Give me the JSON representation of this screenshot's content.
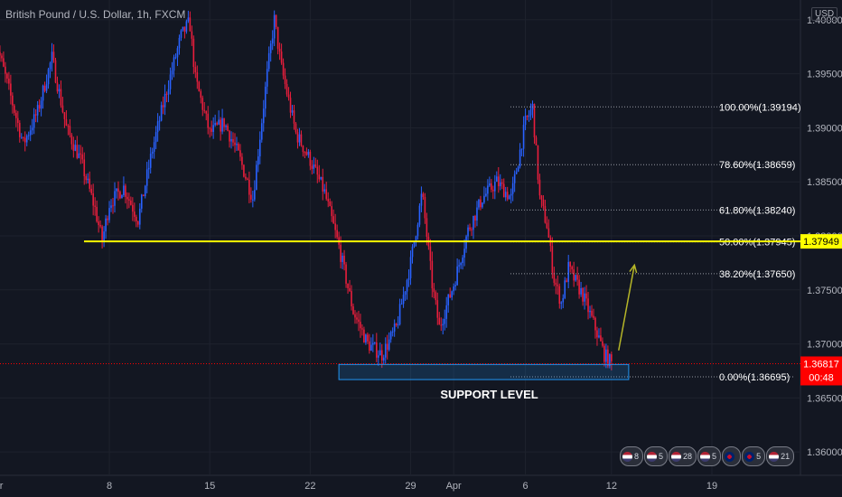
{
  "header": {
    "title": "British Pound / U.S. Dollar, 1h, FXCM",
    "currency": "USD"
  },
  "colors": {
    "background": "#131722",
    "grid": "#1e222d",
    "up_candle": "#2962ff",
    "down_candle": "#e91e3c",
    "key_level": "#ffff00",
    "support_box": "#2196f3",
    "price_tag": "#ff0000",
    "arrow": "#b5b528"
  },
  "chart_data": {
    "type": "candlestick",
    "symbol": "GBPUSD",
    "timeframe": "1h",
    "ylim": [
      1.3565,
      1.4025
    ],
    "y_ticks": [
      "1.40000",
      "1.39500",
      "1.39000",
      "1.38500",
      "1.38000",
      "1.37500",
      "1.37000",
      "1.36500",
      "1.36000"
    ],
    "x_ticks": [
      "Mar",
      "8",
      "15",
      "22",
      "29",
      "Apr",
      "6",
      "12",
      "19"
    ],
    "x_tick_days": [
      0,
      8,
      15,
      22,
      29,
      32,
      37,
      43,
      50
    ],
    "series_close_approx": [
      [
        0,
        1.3985
      ],
      [
        1,
        1.3935
      ],
      [
        2,
        1.3885
      ],
      [
        3,
        1.3915
      ],
      [
        4,
        1.3965
      ],
      [
        5,
        1.39
      ],
      [
        6,
        1.387
      ],
      [
        7,
        1.3825
      ],
      [
        7.5,
        1.3795
      ],
      [
        8,
        1.383
      ],
      [
        9,
        1.3845
      ],
      [
        10,
        1.3815
      ],
      [
        11,
        1.388
      ],
      [
        12,
        1.3935
      ],
      [
        13,
        1.3985
      ],
      [
        13.6,
        1.3998
      ],
      [
        14,
        1.3945
      ],
      [
        15,
        1.3895
      ],
      [
        16,
        1.3905
      ],
      [
        17,
        1.3875
      ],
      [
        18,
        1.3835
      ],
      [
        19,
        1.395
      ],
      [
        19.5,
        1.4
      ],
      [
        20,
        1.3955
      ],
      [
        21,
        1.3895
      ],
      [
        22,
        1.387
      ],
      [
        23,
        1.384
      ],
      [
        24,
        1.379
      ],
      [
        25,
        1.373
      ],
      [
        26,
        1.37
      ],
      [
        27,
        1.369
      ],
      [
        28,
        1.3715
      ],
      [
        29,
        1.3775
      ],
      [
        29.8,
        1.384
      ],
      [
        30.5,
        1.3755
      ],
      [
        31,
        1.3715
      ],
      [
        32,
        1.3755
      ],
      [
        33,
        1.3805
      ],
      [
        34,
        1.3835
      ],
      [
        35,
        1.385
      ],
      [
        36,
        1.3835
      ],
      [
        37,
        1.3905
      ],
      [
        37.5,
        1.3919
      ],
      [
        38,
        1.3835
      ],
      [
        38.5,
        1.381
      ],
      [
        39,
        1.376
      ],
      [
        39.5,
        1.3738
      ],
      [
        40,
        1.377
      ],
      [
        41,
        1.3745
      ],
      [
        42,
        1.371
      ],
      [
        42.5,
        1.369
      ],
      [
        43,
        1.3682
      ]
    ],
    "fibonacci": [
      {
        "label": "100.00%(1.39194)",
        "price": 1.39194
      },
      {
        "label": "78.60%(1.38659)",
        "price": 1.38659
      },
      {
        "label": "61.80%(1.38240)",
        "price": 1.3824
      },
      {
        "label": "50.00%(1.37945)",
        "price": 1.37945
      },
      {
        "label": "38.20%(1.37650)",
        "price": 1.3765
      },
      {
        "label": "0.00%(1.36695)",
        "price": 1.36695
      }
    ],
    "key_level": {
      "price": 1.37949,
      "label": "1.37949"
    },
    "support_zone": {
      "low": 1.3667,
      "high": 1.3681,
      "start_day": 24,
      "end_day": 44.2,
      "label": "SUPPORT LEVEL"
    },
    "current_price": {
      "price": 1.36817,
      "label": "1.36817",
      "countdown": "00:48"
    },
    "projection_arrow": {
      "from": [
        43.5,
        1.3694
      ],
      "to": [
        44.6,
        1.3773
      ]
    }
  },
  "events": [
    {
      "flag": "us",
      "text": "8"
    },
    {
      "flag": "us",
      "text": "5"
    },
    {
      "flag": "us",
      "text": "28"
    },
    {
      "flag": "us",
      "text": "5"
    },
    {
      "flag": "uk",
      "text": ""
    },
    {
      "flag": "uk",
      "text": "5"
    },
    {
      "flag": "us",
      "text": "21"
    }
  ]
}
